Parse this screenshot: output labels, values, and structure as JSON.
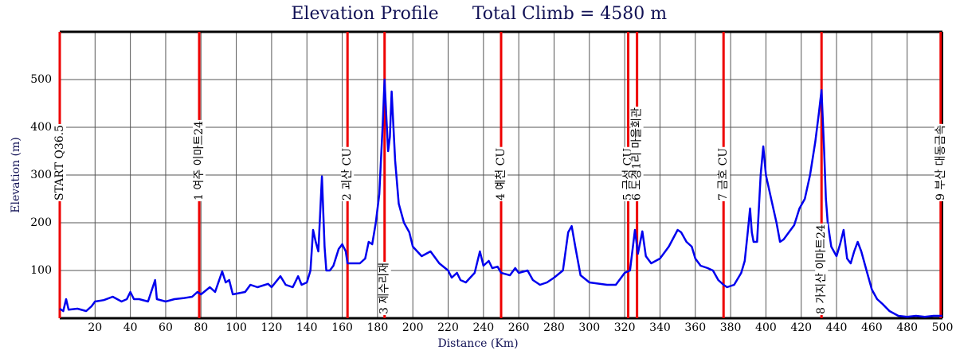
{
  "chart_data": {
    "type": "line",
    "title": "Elevation Profile",
    "subtitle": "Total Climb = 4580 m",
    "x_label": "Distance (Km)",
    "y_label": "Elevation (m)",
    "color": "#0000ee",
    "marker_color": "#ee0000",
    "grid": true,
    "xlim": [
      0,
      500
    ],
    "ylim": [
      0,
      600
    ],
    "xticks": [
      20,
      40,
      60,
      80,
      100,
      120,
      140,
      160,
      180,
      200,
      220,
      240,
      260,
      280,
      300,
      320,
      340,
      360,
      380,
      400,
      420,
      440,
      460,
      480,
      500
    ],
    "yticks": [
      100,
      200,
      300,
      400,
      500
    ],
    "x": [
      0,
      2,
      3.6,
      5,
      10,
      15,
      18,
      20,
      25,
      30,
      35,
      38,
      40,
      42,
      45,
      50,
      54,
      55,
      60,
      65,
      70,
      75,
      78,
      80,
      85,
      88,
      92,
      94,
      96,
      98,
      105,
      108,
      112,
      118,
      120,
      125,
      128,
      132,
      135,
      137,
      140,
      142,
      143.5,
      145,
      146.5,
      148.5,
      150,
      151,
      153,
      155,
      158,
      160,
      162,
      163,
      170,
      173,
      175,
      177,
      179,
      181,
      183,
      184,
      185,
      186,
      187,
      188,
      190,
      192,
      195,
      198,
      200,
      205,
      210,
      215,
      220,
      222,
      225,
      227,
      230,
      235,
      238,
      240,
      243,
      245,
      248,
      250,
      255,
      258,
      260,
      265,
      268,
      272,
      276,
      280,
      285,
      288,
      290,
      292,
      295,
      300,
      310,
      315,
      318,
      320,
      323,
      325.8,
      327.5,
      330,
      332,
      335,
      340,
      345,
      350,
      352,
      355,
      358,
      360,
      363,
      367,
      370,
      373,
      376,
      378,
      382,
      386,
      388,
      390,
      391,
      392,
      393,
      395,
      397,
      398.5,
      400,
      403,
      406,
      408,
      410,
      413,
      416,
      419,
      422,
      425,
      428,
      430,
      431.5,
      433,
      434,
      435,
      437,
      440,
      442,
      444,
      446,
      448,
      450,
      452,
      454,
      457,
      460,
      463,
      466,
      470,
      475,
      480,
      485,
      490,
      495,
      500
    ],
    "values": [
      20,
      15,
      40,
      18,
      20,
      15,
      25,
      35,
      38,
      45,
      35,
      40,
      55,
      40,
      40,
      35,
      80,
      40,
      35,
      40,
      42,
      45,
      55,
      50,
      65,
      55,
      98,
      75,
      80,
      50,
      55,
      70,
      65,
      72,
      65,
      88,
      70,
      65,
      88,
      70,
      75,
      100,
      185,
      160,
      140,
      297,
      150,
      100,
      100,
      110,
      145,
      155,
      140,
      115,
      115,
      125,
      160,
      155,
      200,
      260,
      410,
      500,
      420,
      350,
      380,
      475,
      330,
      240,
      200,
      180,
      150,
      130,
      140,
      115,
      100,
      85,
      95,
      80,
      75,
      95,
      140,
      110,
      120,
      105,
      108,
      95,
      90,
      105,
      95,
      100,
      80,
      70,
      75,
      85,
      100,
      180,
      193,
      150,
      90,
      75,
      70,
      70,
      85,
      95,
      100,
      185,
      135,
      182,
      130,
      115,
      125,
      150,
      185,
      180,
      160,
      150,
      125,
      110,
      105,
      100,
      80,
      70,
      65,
      70,
      95,
      120,
      190,
      230,
      180,
      160,
      160,
      300,
      360,
      300,
      250,
      200,
      160,
      165,
      180,
      195,
      230,
      250,
      300,
      370,
      430,
      478,
      350,
      250,
      200,
      150,
      130,
      155,
      185,
      125,
      115,
      140,
      160,
      140,
      100,
      60,
      40,
      30,
      15,
      5,
      3,
      5,
      3,
      5,
      5
    ],
    "markers": [
      {
        "x": 0,
        "label": "START Q36.5"
      },
      {
        "x": 79,
        "label": "1 여주 이마트24"
      },
      {
        "x": 163,
        "label": "2 괴산 CU"
      },
      {
        "x": 184,
        "label": "3 제수리재"
      },
      {
        "x": 250,
        "label": "4 예천 CU"
      },
      {
        "x": 322,
        "label": "5 금성 CU"
      },
      {
        "x": 327,
        "label": "6 도경1리 마을회관"
      },
      {
        "x": 376,
        "label": "7 금호 CU"
      },
      {
        "x": 431.5,
        "label": "8 가지산 이마트24"
      },
      {
        "x": 499,
        "label": "9 부산 대동금속"
      }
    ]
  }
}
